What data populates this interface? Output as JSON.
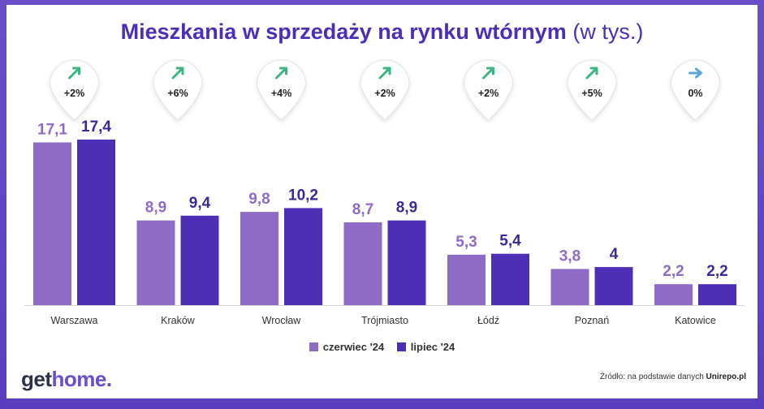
{
  "title": {
    "main": "Mieszkania w sprzedaży na rynku wtórnym",
    "unit": "(w tys.)"
  },
  "colors": {
    "june": "#8e6bc6",
    "july": "#4d2fb5",
    "arrow_up": "#3bb582",
    "arrow_flat": "#5aa6d8",
    "value_june": "#8e6bc6",
    "value_july": "#3a2a9a"
  },
  "chart_data": {
    "type": "bar",
    "title": "Mieszkania w sprzedaży na rynku wtórnym (w tys.)",
    "categories": [
      "Warszawa",
      "Kraków",
      "Wrocław",
      "Trójmiasto",
      "Łódź",
      "Poznań",
      "Katowice"
    ],
    "series": [
      {
        "name": "czerwiec '24",
        "values": [
          17.1,
          8.9,
          9.8,
          8.7,
          5.3,
          3.8,
          2.2
        ],
        "labels": [
          "17,1",
          "8,9",
          "9,8",
          "8,7",
          "5,3",
          "3,8",
          "2,2"
        ]
      },
      {
        "name": "lipiec '24",
        "values": [
          17.4,
          9.4,
          10.2,
          8.9,
          5.4,
          4.0,
          2.2
        ],
        "labels": [
          "17,4",
          "9,4",
          "10,2",
          "8,9",
          "5,4",
          "4",
          "2,2"
        ]
      }
    ],
    "changes": [
      {
        "label": "+2%",
        "direction": "up"
      },
      {
        "label": "+6%",
        "direction": "up"
      },
      {
        "label": "+4%",
        "direction": "up"
      },
      {
        "label": "+2%",
        "direction": "up"
      },
      {
        "label": "+2%",
        "direction": "up"
      },
      {
        "label": "+5%",
        "direction": "up"
      },
      {
        "label": "0%",
        "direction": "flat"
      }
    ],
    "ylim": [
      0,
      17.4
    ],
    "grid": false,
    "legend": "bottom-center"
  },
  "legend": {
    "june": "czerwiec '24",
    "july": "lipiec '24"
  },
  "footer": {
    "logo_get": "get",
    "logo_home": "home.",
    "source_prefix": "Źródło: na podstawie danych ",
    "source_name": "Unirepo.pl"
  }
}
